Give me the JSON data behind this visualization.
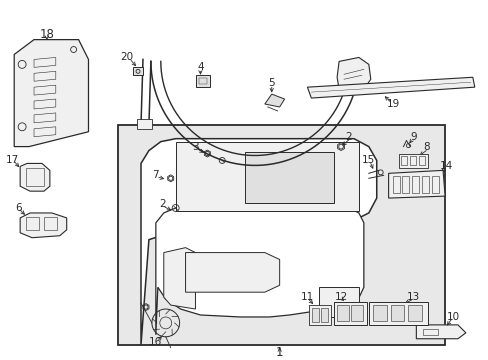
{
  "bg_color": "#ffffff",
  "line_color": "#2a2a2a",
  "fill_light": "#f0f0f0",
  "fill_mid": "#e0e0e0",
  "box_bg": "#e8e8e8",
  "figsize": [
    4.89,
    3.6
  ],
  "dpi": 100
}
